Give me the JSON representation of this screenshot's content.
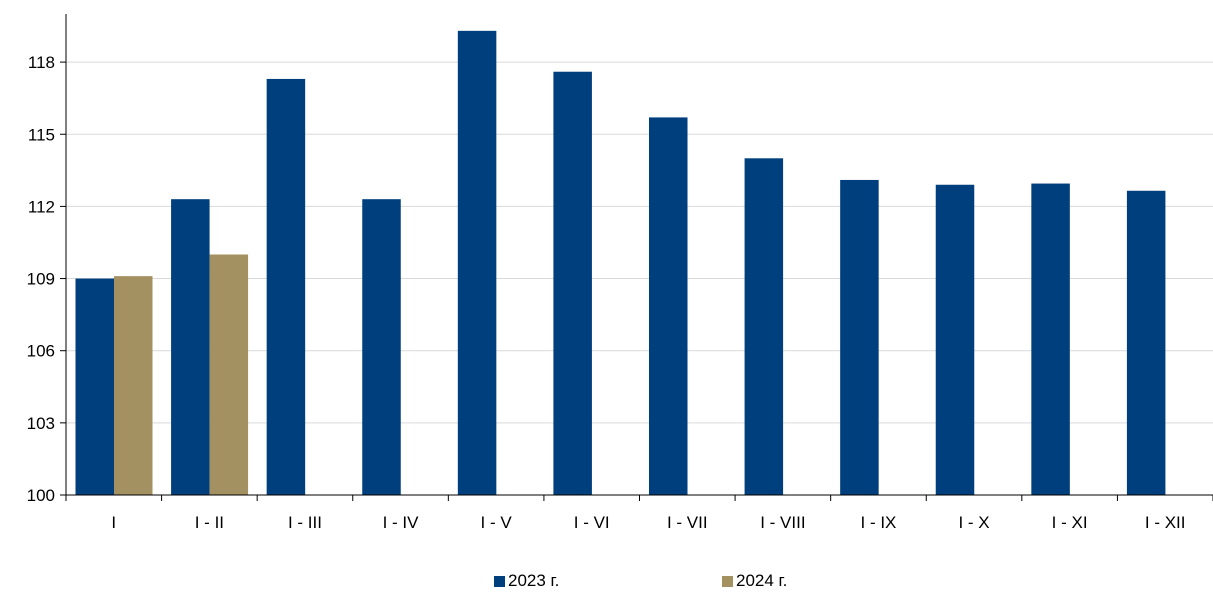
{
  "chart_data": {
    "type": "bar",
    "title": "",
    "xlabel": "",
    "ylabel": "",
    "categories": [
      "I",
      "I - II",
      "I - III",
      "I - IV",
      "I - V",
      "I - VI",
      "I - VII",
      "I - VIII",
      "I - IX",
      "I - X",
      "I - XI",
      "I - XII"
    ],
    "series": [
      {
        "name": "2023 г.",
        "color": "#003f7d",
        "values": [
          109.0,
          112.3,
          117.3,
          112.3,
          119.3,
          117.6,
          115.7,
          114.0,
          113.1,
          112.9,
          112.95,
          112.65
        ]
      },
      {
        "name": "2024 г.",
        "color": "#a39161",
        "values": [
          109.1,
          110.0,
          null,
          null,
          null,
          null,
          null,
          null,
          null,
          null,
          null,
          null
        ]
      }
    ],
    "ylim": [
      100,
      120
    ],
    "yticks": [
      "100",
      "103",
      "106",
      "109",
      "112",
      "115",
      "118"
    ],
    "grid": true,
    "legend_position": "bottom"
  }
}
